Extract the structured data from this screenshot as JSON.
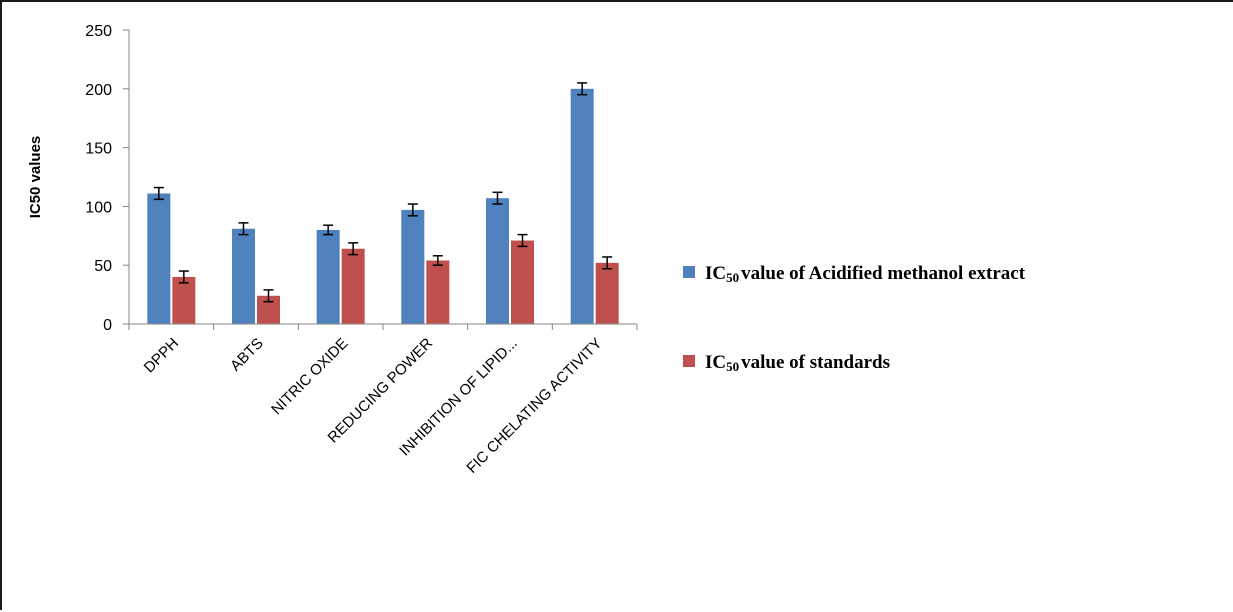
{
  "chart_data": {
    "type": "bar",
    "categories": [
      "DPPH",
      "ABTS",
      "NITRIC OXIDE",
      "REDUCING POWER",
      "INHIBITION OF LIPID...",
      "FIC CHELATING ACTIVITY"
    ],
    "series": [
      {
        "name": "value of Acidified methanol extract",
        "values": [
          111,
          81,
          80,
          97,
          107,
          200
        ],
        "errors": [
          5,
          5,
          4,
          5,
          5,
          5
        ],
        "color": "#4f81bd"
      },
      {
        "name": "value of standards",
        "values": [
          40,
          24,
          64,
          54,
          71,
          52
        ],
        "errors": [
          5,
          5,
          5,
          4,
          5,
          5
        ],
        "color": "#c0504d"
      }
    ],
    "legend_prefix": "IC",
    "legend_subscript": "50",
    "ylabel": "IC50 values",
    "xlabel": "",
    "ylim": [
      0,
      250
    ],
    "yticks": [
      0,
      50,
      100,
      150,
      200,
      250
    ],
    "grid": false,
    "legend_position": "right",
    "error_bars": true
  }
}
